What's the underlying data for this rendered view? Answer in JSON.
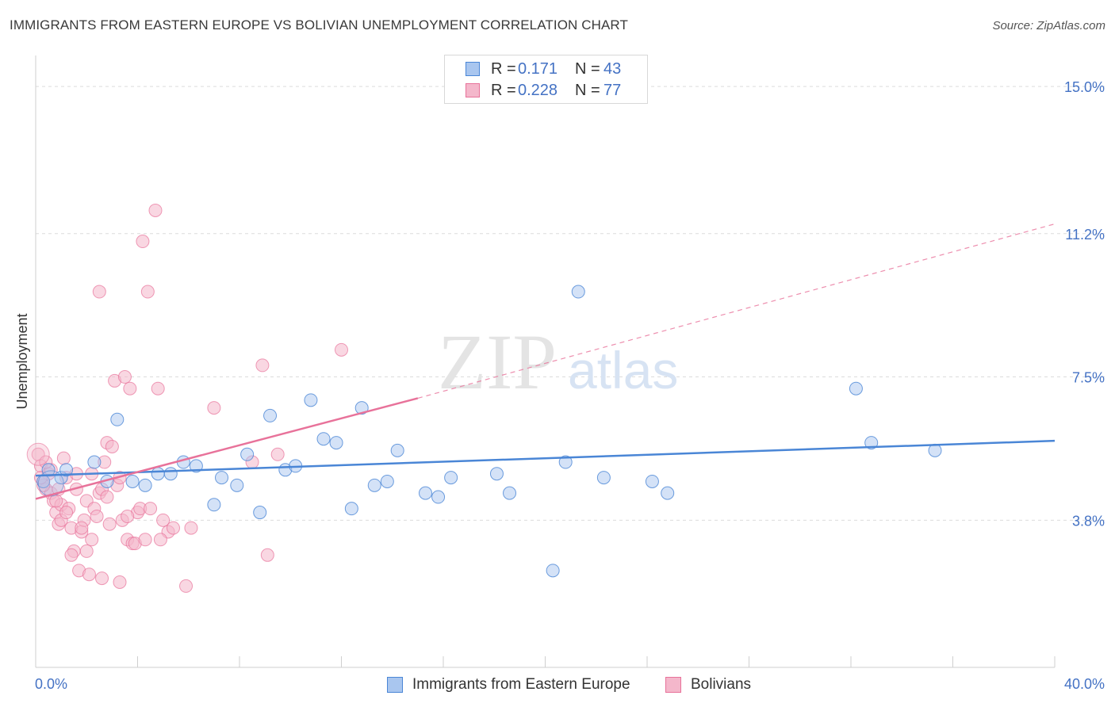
{
  "title": "IMMIGRANTS FROM EASTERN EUROPE VS BOLIVIAN UNEMPLOYMENT CORRELATION CHART",
  "source": "Source: ZipAtlas.com",
  "watermark": {
    "zip": "ZIP",
    "atlas": "atlas"
  },
  "colors": {
    "blue": "#4a86d6",
    "blue_fill": "#a9c6ef",
    "pink": "#e8729a",
    "pink_fill": "#f4b7cb",
    "axis_label": "#4472c4"
  },
  "legend": {
    "rows": [
      {
        "r_key": "R =",
        "r_val": "0.171",
        "n_key": "N =",
        "n_val": "43"
      },
      {
        "r_key": "R =",
        "r_val": "0.228",
        "n_key": "N =",
        "n_val": "77"
      }
    ]
  },
  "bottom_legend": [
    "Immigrants from Eastern Europe",
    "Bolivians"
  ],
  "chart_data": {
    "type": "scatter",
    "xlabel": "",
    "ylabel": "Unemployment",
    "xlim": [
      0,
      40
    ],
    "ylim": [
      0,
      15.8
    ],
    "x_tick_labels": [
      "0.0%",
      "40.0%"
    ],
    "y_ticks": [
      3.8,
      7.5,
      11.2,
      15.0
    ],
    "y_tick_labels": [
      "3.8%",
      "7.5%",
      "11.2%",
      "15.0%"
    ],
    "grid": true,
    "series": [
      {
        "name": "Immigrants from Eastern Europe",
        "color": "#4a86d6",
        "trend": {
          "x0": 0,
          "y0": 4.95,
          "x1": 40,
          "y1": 5.85
        },
        "points": [
          [
            0.3,
            4.8
          ],
          [
            1.0,
            4.9
          ],
          [
            1.2,
            5.1
          ],
          [
            2.3,
            5.3
          ],
          [
            2.8,
            4.8
          ],
          [
            3.2,
            6.4
          ],
          [
            3.8,
            4.8
          ],
          [
            4.3,
            4.7
          ],
          [
            4.8,
            5.0
          ],
          [
            5.3,
            5.0
          ],
          [
            5.8,
            5.3
          ],
          [
            6.3,
            5.2
          ],
          [
            7.0,
            4.2
          ],
          [
            7.3,
            4.9
          ],
          [
            7.9,
            4.7
          ],
          [
            8.3,
            5.5
          ],
          [
            8.8,
            4.0
          ],
          [
            9.2,
            6.5
          ],
          [
            9.8,
            5.1
          ],
          [
            10.2,
            5.2
          ],
          [
            10.8,
            6.9
          ],
          [
            11.3,
            5.9
          ],
          [
            11.8,
            5.8
          ],
          [
            12.4,
            4.1
          ],
          [
            12.8,
            6.7
          ],
          [
            13.3,
            4.7
          ],
          [
            13.8,
            4.8
          ],
          [
            14.2,
            5.6
          ],
          [
            15.3,
            4.5
          ],
          [
            15.8,
            4.4
          ],
          [
            16.3,
            4.9
          ],
          [
            18.1,
            5.0
          ],
          [
            18.6,
            4.5
          ],
          [
            20.8,
            5.3
          ],
          [
            21.3,
            9.7
          ],
          [
            22.3,
            4.9
          ],
          [
            24.2,
            4.8
          ],
          [
            24.8,
            4.5
          ],
          [
            20.3,
            2.5
          ],
          [
            32.2,
            7.2
          ],
          [
            32.8,
            5.8
          ],
          [
            35.3,
            5.6
          ],
          [
            0.5,
            5.1
          ]
        ]
      },
      {
        "name": "Bolivians",
        "color": "#e8729a",
        "trend": {
          "x0": 0,
          "y0": 4.35,
          "x1": 15,
          "y1": 6.95,
          "dash_to_x": 40,
          "dash_to_y": 11.45
        },
        "points": [
          [
            0.1,
            5.5
          ],
          [
            0.2,
            5.2
          ],
          [
            0.3,
            4.8
          ],
          [
            0.4,
            4.6
          ],
          [
            0.5,
            5.0
          ],
          [
            0.6,
            4.5
          ],
          [
            0.7,
            4.3
          ],
          [
            0.8,
            4.0
          ],
          [
            0.9,
            3.7
          ],
          [
            1.0,
            4.2
          ],
          [
            1.1,
            5.4
          ],
          [
            1.2,
            4.9
          ],
          [
            1.3,
            4.1
          ],
          [
            1.4,
            3.6
          ],
          [
            1.5,
            3.0
          ],
          [
            1.6,
            4.6
          ],
          [
            1.7,
            2.5
          ],
          [
            1.8,
            3.5
          ],
          [
            1.9,
            3.8
          ],
          [
            2.0,
            4.3
          ],
          [
            2.1,
            2.4
          ],
          [
            2.2,
            3.3
          ],
          [
            2.3,
            4.1
          ],
          [
            2.4,
            3.9
          ],
          [
            2.5,
            4.5
          ],
          [
            2.6,
            4.6
          ],
          [
            2.7,
            5.3
          ],
          [
            2.8,
            5.8
          ],
          [
            2.9,
            3.7
          ],
          [
            3.0,
            5.7
          ],
          [
            3.1,
            7.4
          ],
          [
            3.2,
            4.7
          ],
          [
            3.3,
            4.9
          ],
          [
            3.4,
            3.8
          ],
          [
            3.5,
            7.5
          ],
          [
            3.6,
            3.3
          ],
          [
            3.7,
            7.2
          ],
          [
            3.8,
            3.2
          ],
          [
            4.0,
            4.0
          ],
          [
            4.1,
            4.1
          ],
          [
            4.2,
            11.0
          ],
          [
            4.4,
            9.7
          ],
          [
            4.5,
            4.1
          ],
          [
            4.7,
            11.8
          ],
          [
            4.8,
            7.2
          ],
          [
            5.0,
            3.8
          ],
          [
            5.2,
            3.5
          ],
          [
            5.4,
            3.6
          ],
          [
            5.9,
            2.1
          ],
          [
            6.1,
            3.6
          ],
          [
            7.0,
            6.7
          ],
          [
            8.5,
            5.3
          ],
          [
            8.9,
            7.8
          ],
          [
            9.1,
            2.9
          ],
          [
            9.5,
            5.5
          ],
          [
            12.0,
            8.2
          ],
          [
            2.5,
            9.7
          ],
          [
            0.3,
            4.7
          ],
          [
            0.6,
            5.1
          ],
          [
            1.0,
            3.8
          ],
          [
            1.4,
            2.9
          ],
          [
            1.8,
            3.6
          ],
          [
            2.6,
            2.3
          ],
          [
            3.3,
            2.2
          ],
          [
            3.9,
            3.2
          ],
          [
            4.9,
            3.3
          ],
          [
            0.2,
            4.9
          ],
          [
            0.8,
            4.3
          ],
          [
            1.6,
            5.0
          ],
          [
            2.2,
            5.0
          ],
          [
            2.8,
            4.4
          ],
          [
            3.6,
            3.9
          ],
          [
            4.3,
            3.3
          ],
          [
            0.4,
            5.3
          ],
          [
            1.2,
            4.0
          ],
          [
            2.0,
            3.0
          ],
          [
            0.9,
            4.6
          ]
        ]
      }
    ]
  }
}
